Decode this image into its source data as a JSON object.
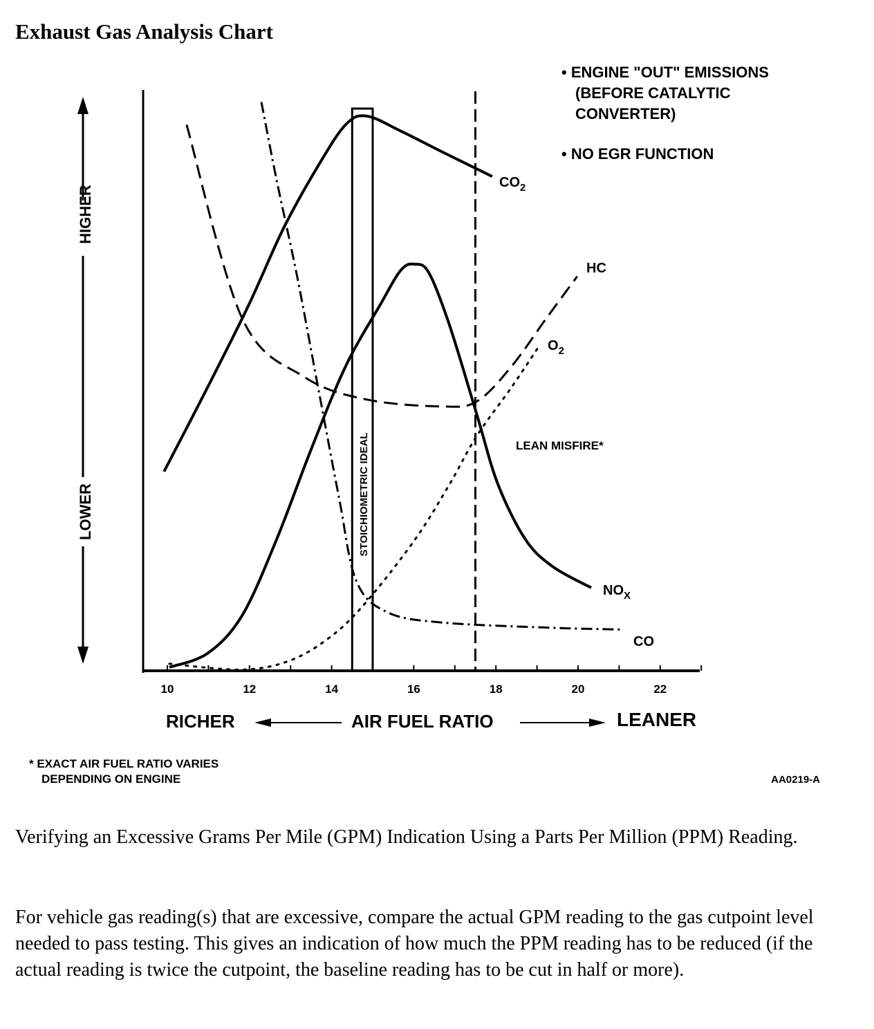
{
  "document": {
    "title": "Exhaust Gas Analysis Chart",
    "paragraphs": [
      "Verifying an Excessive Grams Per Mile (GPM) Indication Using a Parts Per Million (PPM) Reading.",
      "For vehicle gas reading(s) that are excessive, compare the actual GPM reading to the gas cutpoint level needed to pass testing. This gives an indication of how much the PPM reading has to be reduced (if the actual reading is twice the cutpoint, the baseline reading has to be cut in half or more)."
    ]
  },
  "chart_data": {
    "type": "line",
    "title": "Exhaust Gas Analysis Chart",
    "xlabel": "AIR FUEL RATIO",
    "xlabel_left": "RICHER",
    "xlabel_right": "LEANER",
    "ylabel_high": "HIGHER",
    "ylabel_low": "LOWER",
    "xlim": [
      9.5,
      23
    ],
    "ylim": [
      0,
      100
    ],
    "x_ticks": [
      "10",
      "12",
      "14",
      "16",
      "18",
      "20",
      "22"
    ],
    "x_tick_values": [
      10,
      12,
      14,
      16,
      18,
      20,
      22
    ],
    "grid": false,
    "notes": [
      "• ENGINE \"OUT\" EMISSIONS",
      "(BEFORE CATALYTIC",
      "CONVERTER)",
      "• NO EGR FUNCTION"
    ],
    "stoichiometric_band": {
      "label": "STOICHIOMETRIC IDEAL",
      "x_range": [
        14.5,
        15.0
      ]
    },
    "lean_misfire": {
      "label": "LEAN MISFIRE*",
      "x": 17.5
    },
    "footnote": [
      "* EXACT AIR FUEL RATIO VARIES",
      "DEPENDING ON ENGINE"
    ],
    "figure_id": "AA0219-A",
    "series": [
      {
        "name": "CO2",
        "label_main": "CO",
        "label_sub": "2",
        "style": "solid",
        "x": [
          9.92,
          10.98,
          11.99,
          12.83,
          13.67,
          14.34,
          14.85,
          15.69,
          16.7,
          17.91
        ],
        "y": [
          34.3,
          48.8,
          63.1,
          76.2,
          86.9,
          94.0,
          95.5,
          92.9,
          89.3,
          85.1
        ]
      },
      {
        "name": "NOx",
        "label_main": "NO",
        "label_sub": "X",
        "style": "solid",
        "x": [
          10.05,
          10.98,
          11.82,
          12.66,
          13.5,
          14.34,
          15.19,
          15.69,
          16.03,
          16.37,
          16.87,
          17.54,
          18.05,
          18.72,
          19.39,
          20.32
        ],
        "y": [
          0.6,
          3.0,
          9.5,
          22.6,
          38.1,
          52.4,
          63.1,
          69.0,
          70.0,
          68.5,
          59.5,
          44.0,
          32.1,
          22.6,
          17.9,
          14.3
        ]
      },
      {
        "name": "HC",
        "label_main": "HC",
        "label_sub": "",
        "style": "dashed",
        "x": [
          10.47,
          11.82,
          13.33,
          14.85,
          16.7,
          17.54,
          18.38,
          19.23,
          19.98
        ],
        "y": [
          94.0,
          60.7,
          50.6,
          46.7,
          45.5,
          46.4,
          52.4,
          60.7,
          67.9
        ]
      },
      {
        "name": "CO",
        "label_main": "CO",
        "label_sub": "",
        "style": "dashdot",
        "x": [
          12.29,
          12.66,
          13.16,
          13.67,
          14.18,
          14.6,
          15.35,
          16.7,
          19.39,
          21.08
        ],
        "y": [
          97.9,
          84.5,
          67.9,
          48.8,
          29.8,
          15.5,
          10.1,
          8.3,
          7.4,
          7.1
        ]
      },
      {
        "name": "O2",
        "label_main": "O",
        "label_sub": "2",
        "style": "dotted",
        "x": [
          10.05,
          11.82,
          13.0,
          14.0,
          14.85,
          16.03,
          16.87,
          17.54,
          18.38,
          19.06
        ],
        "y": [
          1.2,
          0.2,
          1.8,
          6.0,
          11.9,
          22.6,
          32.1,
          40.5,
          48.8,
          56.0
        ]
      }
    ]
  }
}
